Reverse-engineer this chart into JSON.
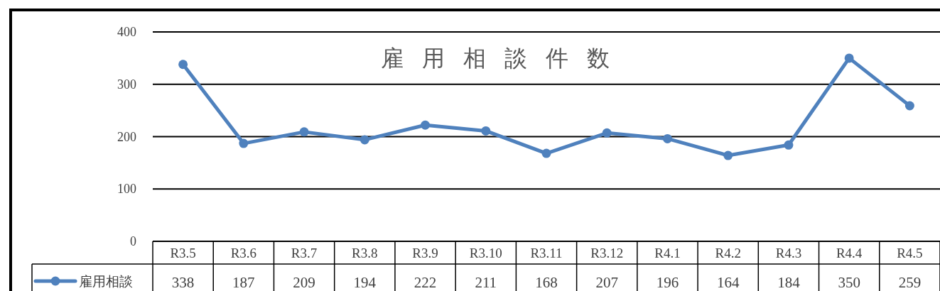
{
  "chart_data": {
    "type": "line",
    "title": "雇用相談件数",
    "categories": [
      "R3.5",
      "R3.6",
      "R3.7",
      "R3.8",
      "R3.9",
      "R3.10",
      "R3.11",
      "R3.12",
      "R4.1",
      "R4.2",
      "R4.3",
      "R4.4",
      "R4.5"
    ],
    "series": [
      {
        "name": "雇用相談",
        "color": "#4f81bd",
        "values": [
          338,
          187,
          209,
          194,
          222,
          211,
          168,
          207,
          196,
          164,
          184,
          350,
          259
        ]
      }
    ],
    "ylim": [
      0,
      400
    ],
    "yticks": [
      0,
      100,
      200,
      300,
      400
    ],
    "grid": "y",
    "marker": "circle",
    "line_style": "solid",
    "data_labels": true,
    "legend": "bottom left"
  }
}
